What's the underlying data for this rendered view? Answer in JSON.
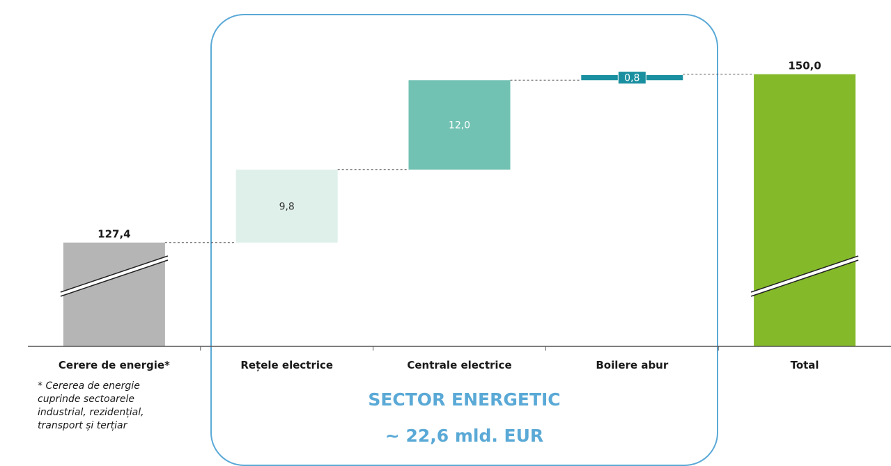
{
  "chart_data": {
    "type": "waterfall",
    "categories": [
      "Cerere de energie*",
      "Rețele electrice",
      "Centrale electrice",
      "Boilere abur",
      "Total"
    ],
    "bars": [
      {
        "category": "Cerere de energie*",
        "kind": "total",
        "value": 127.4,
        "label": "127,4",
        "color": "#b5b5b5",
        "broken_axis": true
      },
      {
        "category": "Rețele electrice",
        "kind": "increment",
        "value": 9.8,
        "label": "9,8",
        "color": "#dff0ea"
      },
      {
        "category": "Centrale electrice",
        "kind": "increment",
        "value": 12.0,
        "label": "12,0",
        "color": "#72c2b3"
      },
      {
        "category": "Boilere abur",
        "kind": "increment",
        "value": 0.8,
        "label": "0,8",
        "color": "#1a8fa0"
      },
      {
        "category": "Total",
        "kind": "total",
        "value": 150.0,
        "label": "150,0",
        "color": "#84b929",
        "broken_axis": true
      }
    ],
    "ylim": [
      120,
      151
    ],
    "grid": false,
    "connectors": "dashed"
  },
  "footnote": {
    "lines": [
      "* Cererea de energie",
      "cuprinde sectoarele",
      "industrial, rezidențial,",
      "transport și terțiar"
    ]
  },
  "sector": {
    "title": "SECTOR ENERGETIC",
    "amount": "~ 22,6 mld. EUR",
    "color": "#5aa9d6"
  }
}
